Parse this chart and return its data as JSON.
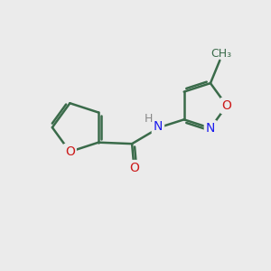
{
  "background_color": "#ebebeb",
  "bond_color": "#3a6b4a",
  "bond_width": 1.8,
  "atom_colors": {
    "N": "#1a1aee",
    "O": "#cc1a1a",
    "C": "#3a6b4a"
  },
  "font_size_atom": 10,
  "font_size_methyl": 9
}
